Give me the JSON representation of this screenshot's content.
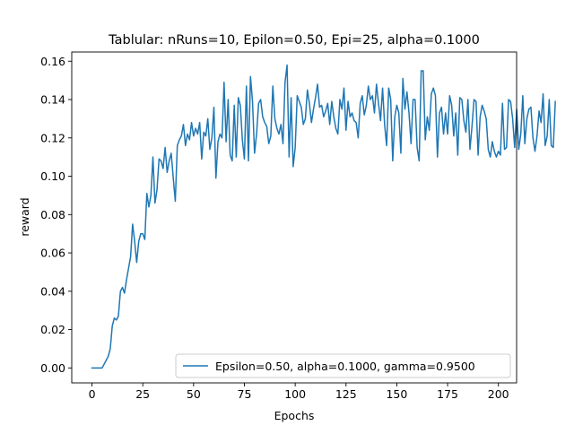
{
  "chart_data": {
    "type": "line",
    "title": "Tablular: nRuns=10, Epilon=0.50, Epi=25, alpha=0.1000",
    "xlabel": "Epochs",
    "ylabel": "reward",
    "xlim": [
      -9.95,
      208.95
    ],
    "ylim": [
      -0.0078,
      0.1648
    ],
    "xticks": [
      0,
      25,
      50,
      75,
      100,
      125,
      150,
      175,
      200
    ],
    "xtick_labels": [
      "0",
      "25",
      "50",
      "75",
      "100",
      "125",
      "150",
      "175",
      "200"
    ],
    "yticks": [
      0.0,
      0.02,
      0.04,
      0.06,
      0.08,
      0.1,
      0.12,
      0.14,
      0.16
    ],
    "ytick_labels": [
      "0.00",
      "0.02",
      "0.04",
      "0.06",
      "0.08",
      "0.10",
      "0.12",
      "0.14",
      "0.16"
    ],
    "grid": false,
    "legend_position": "lower right",
    "series": [
      {
        "name": "Epsilon=0.50, alpha=0.1000, gamma=0.9500",
        "color": "#1f77b4",
        "x_start": 0,
        "x_step": 1,
        "values": [
          0,
          0,
          0,
          0,
          0,
          0,
          0.002,
          0.004,
          0.006,
          0.01,
          0.022,
          0.026,
          0.025,
          0.027,
          0.04,
          0.042,
          0.039,
          0.046,
          0.052,
          0.058,
          0.075,
          0.066,
          0.055,
          0.066,
          0.07,
          0.07,
          0.067,
          0.091,
          0.084,
          0.09,
          0.11,
          0.086,
          0.093,
          0.109,
          0.108,
          0.104,
          0.115,
          0.102,
          0.108,
          0.112,
          0.099,
          0.087,
          0.116,
          0.119,
          0.121,
          0.127,
          0.116,
          0.122,
          0.119,
          0.128,
          0.121,
          0.125,
          0.122,
          0.128,
          0.109,
          0.123,
          0.121,
          0.13,
          0.114,
          0.12,
          0.136,
          0.099,
          0.118,
          0.122,
          0.12,
          0.149,
          0.118,
          0.14,
          0.111,
          0.108,
          0.137,
          0.11,
          0.141,
          0.137,
          0.119,
          0.109,
          0.147,
          0.108,
          0.152,
          0.139,
          0.112,
          0.122,
          0.138,
          0.14,
          0.131,
          0.128,
          0.126,
          0.117,
          0.121,
          0.147,
          0.13,
          0.125,
          0.122,
          0.127,
          0.117,
          0.149,
          0.158,
          0.11,
          0.141,
          0.105,
          0.115,
          0.142,
          0.139,
          0.136,
          0.127,
          0.13,
          0.145,
          0.138,
          0.128,
          0.135,
          0.141,
          0.148,
          0.136,
          0.137,
          0.131,
          0.134,
          0.138,
          0.127,
          0.139,
          0.131,
          0.125,
          0.122,
          0.14,
          0.135,
          0.146,
          0.124,
          0.139,
          0.131,
          0.133,
          0.129,
          0.128,
          0.12,
          0.138,
          0.142,
          0.132,
          0.137,
          0.147,
          0.14,
          0.142,
          0.133,
          0.148,
          0.138,
          0.129,
          0.146,
          0.127,
          0.116,
          0.146,
          0.14,
          0.108,
          0.131,
          0.137,
          0.133,
          0.112,
          0.151,
          0.135,
          0.144,
          0.133,
          0.117,
          0.14,
          0.14,
          0.115,
          0.108,
          0.155,
          0.155,
          0.119,
          0.131,
          0.124,
          0.143,
          0.146,
          0.142,
          0.11,
          0.133,
          0.136,
          0.122,
          0.133,
          0.122,
          0.142,
          0.137,
          0.121,
          0.133,
          0.111,
          0.141,
          0.14,
          0.129,
          0.123,
          0.14,
          0.114,
          0.126,
          0.14,
          0.139,
          0.111,
          0.131,
          0.137,
          0.134,
          0.13,
          0.114,
          0.11,
          0.118,
          0.113,
          0.11,
          0.113,
          0.111,
          0.138,
          0.114,
          0.115,
          0.14,
          0.139,
          0.13,
          0.115,
          0.135,
          0.114,
          0.122,
          0.142,
          0.117,
          0.13,
          0.135,
          0.136,
          0.12,
          0.113,
          0.121,
          0.134,
          0.128,
          0.143,
          0.116,
          0.121,
          0.14,
          0.116,
          0.115,
          0.139
        ]
      }
    ]
  }
}
